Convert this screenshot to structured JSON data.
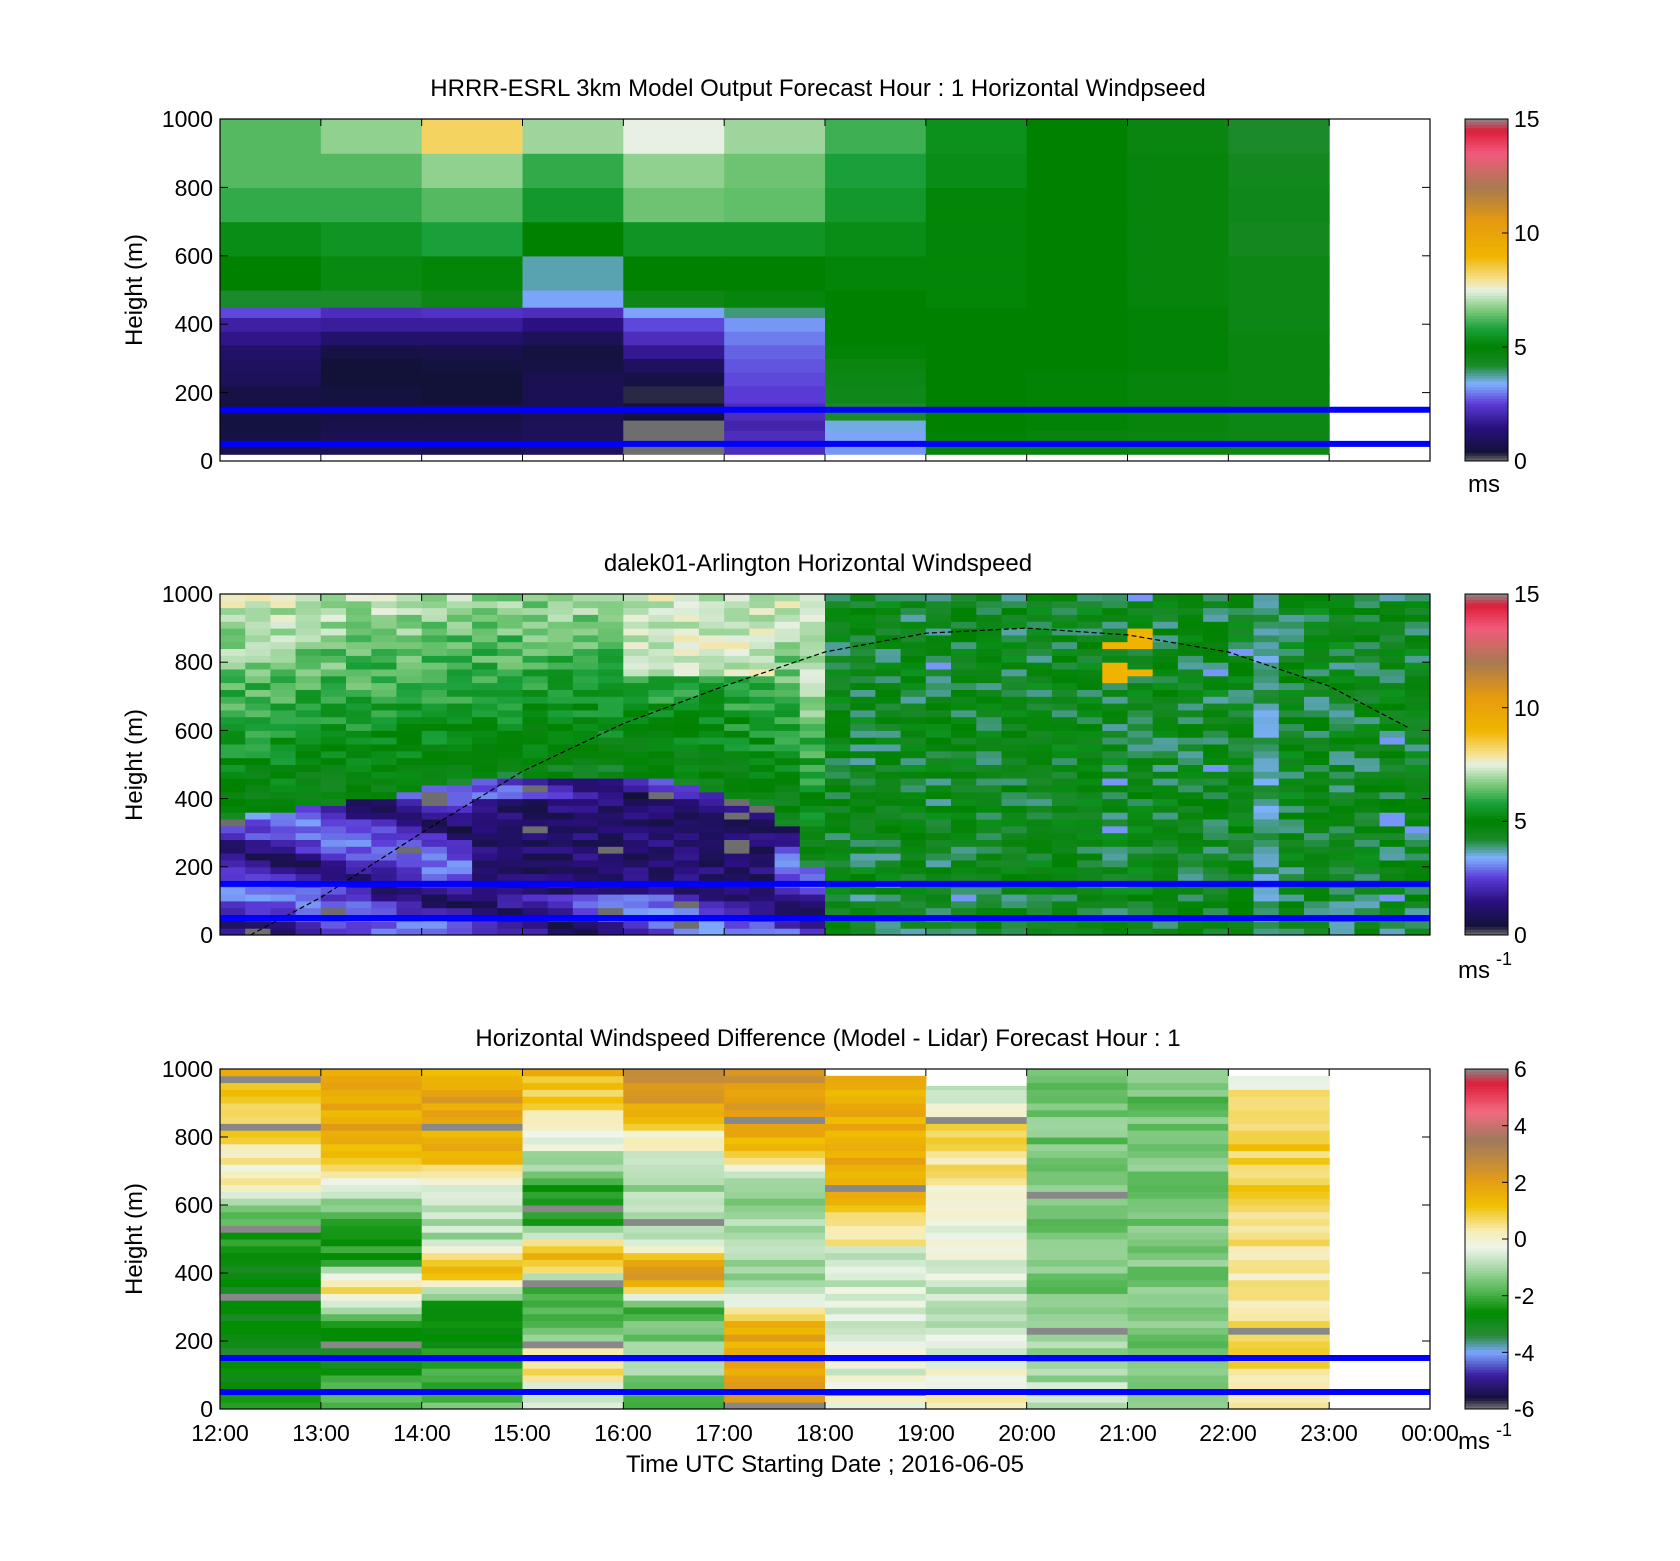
{
  "chart_data": [
    {
      "type": "heatmap",
      "title": "HRRR-ESRL 3km Model Output   Forecast Hour : 1 Horizontal Windpseed",
      "ylabel": "Height (m)",
      "xlabel": "",
      "ylim": [
        0,
        1000
      ],
      "yticks": [
        "0",
        "200",
        "400",
        "600",
        "800",
        "1000"
      ],
      "xlim_hours": [
        12,
        24
      ],
      "xticks": [],
      "colorbar": {
        "ticks": [
          "0",
          "5",
          "10",
          "15"
        ],
        "range": [
          0,
          15
        ],
        "unit": "ms",
        "unit_sup": "",
        "palette": "windspeed"
      },
      "reference_lines_m": [
        150,
        50
      ],
      "reference_line_color": "#0000ff",
      "grid": false,
      "cells": {
        "x_start": [
          12,
          13,
          14,
          15,
          16,
          17,
          18,
          19,
          20,
          21,
          22
        ],
        "x_width": 1,
        "y_edges": [
          20,
          60,
          90,
          120,
          170,
          220,
          260,
          300,
          340,
          380,
          420,
          450,
          500,
          600,
          700,
          800,
          900,
          1000
        ],
        "values": [
          [
            0.8,
            0.6,
            0.5,
            0.5,
            0.6,
            0.9,
            1.0,
            1.1,
            1.6,
            1.9,
            2.6,
            4.2,
            5.0,
            5.3,
            6.0,
            6.3,
            6.3
          ],
          [
            0.9,
            0.8,
            0.7,
            0.6,
            0.5,
            0.4,
            0.4,
            0.6,
            1.2,
            1.8,
            2.2,
            4.2,
            5.2,
            5.5,
            6.0,
            6.3,
            6.8
          ],
          [
            0.8,
            0.8,
            0.7,
            0.6,
            0.4,
            0.4,
            0.5,
            0.7,
            1.2,
            1.8,
            2.3,
            4.6,
            5.1,
            5.8,
            6.3,
            6.8,
            8.3
          ],
          [
            1.0,
            0.9,
            0.9,
            0.8,
            0.8,
            0.8,
            0.6,
            0.5,
            0.9,
            1.5,
            2.2,
            3.3,
            3.7,
            5.0,
            5.6,
            6.0,
            6.9
          ],
          [
            0.0,
            0.0,
            0.0,
            0.5,
            0.3,
            0.6,
            1.0,
            1.7,
            2.2,
            2.6,
            3.3,
            4.6,
            5.0,
            5.5,
            6.5,
            6.8,
            7.5
          ],
          [
            2.2,
            2.2,
            2.0,
            2.2,
            2.5,
            2.6,
            2.7,
            2.8,
            3.0,
            3.2,
            3.9,
            4.8,
            5.0,
            5.5,
            6.4,
            6.5,
            6.9
          ],
          [
            3.2,
            3.3,
            3.5,
            4.2,
            4.5,
            4.6,
            4.7,
            4.9,
            5.0,
            5.0,
            5.0,
            5.0,
            5.1,
            5.3,
            5.6,
            5.8,
            6.1
          ],
          [
            4.8,
            4.9,
            5.0,
            5.0,
            5.0,
            5.0,
            5.0,
            5.0,
            5.0,
            5.0,
            5.0,
            5.1,
            5.1,
            5.1,
            5.1,
            5.3,
            5.4
          ],
          [
            4.8,
            4.8,
            4.9,
            4.9,
            4.9,
            4.9,
            5.0,
            5.0,
            5.0,
            5.0,
            5.0,
            5.0,
            5.0,
            5.0,
            5.0,
            5.0,
            5.0
          ],
          [
            4.7,
            4.7,
            4.8,
            4.8,
            4.8,
            4.8,
            4.9,
            4.9,
            4.9,
            4.9,
            4.9,
            4.8,
            4.8,
            4.8,
            4.8,
            4.8,
            4.7
          ],
          [
            4.6,
            4.6,
            4.6,
            4.6,
            4.7,
            4.7,
            4.7,
            4.7,
            4.7,
            4.6,
            4.6,
            4.6,
            4.6,
            4.4,
            4.5,
            4.4,
            4.2
          ]
        ]
      }
    },
    {
      "type": "heatmap",
      "title": "dalek01-Arlington  Horizontal Windspeed",
      "ylabel": "Height (m)",
      "xlabel": "",
      "ylim": [
        0,
        1000
      ],
      "yticks": [
        "0",
        "200",
        "400",
        "600",
        "800",
        "1000"
      ],
      "xlim_hours": [
        12,
        24
      ],
      "xticks": [],
      "colorbar": {
        "ticks": [
          "0",
          "5",
          "10",
          "15"
        ],
        "range": [
          0,
          15
        ],
        "unit": "ms",
        "unit_sup": "-1",
        "palette": "windspeed"
      },
      "reference_lines_m": [
        150,
        50
      ],
      "reference_line_color": "#0000ff",
      "grid": false,
      "boundary_layer_top": {
        "hours": [
          12.3,
          13,
          14,
          15,
          16,
          17,
          18,
          19,
          20,
          21,
          22,
          23,
          23.9
        ],
        "height": [
          0,
          110,
          300,
          480,
          620,
          730,
          830,
          885,
          900,
          880,
          830,
          730,
          590
        ]
      },
      "lidar_field": {
        "x_start_hour": 12.0,
        "x_end_hour": 23.9,
        "column_width_hour": 0.25,
        "bin_m": 20,
        "max_height_m": 1000
      }
    },
    {
      "type": "heatmap",
      "title": "Horizontal Windspeed Difference (Model - Lidar) Forecast Hour : 1",
      "ylabel": "Height (m)",
      "xlabel": "Time UTC  Starting Date ; 2016-06-05",
      "ylim": [
        0,
        1000
      ],
      "yticks": [
        "0",
        "200",
        "400",
        "600",
        "800",
        "1000"
      ],
      "xlim_hours": [
        12,
        24
      ],
      "xticks": [
        "12:00",
        "13:00",
        "14:00",
        "15:00",
        "16:00",
        "17:00",
        "18:00",
        "19:00",
        "20:00",
        "21:00",
        "22:00",
        "23:00",
        "00:00"
      ],
      "colorbar": {
        "ticks": [
          "-6",
          "-4",
          "-2",
          "0",
          "2",
          "4",
          "6"
        ],
        "range": [
          -6,
          6
        ],
        "unit": "ms",
        "unit_sup": "-1",
        "palette": "difference"
      },
      "reference_lines_m": [
        150,
        50
      ],
      "reference_line_color": "#0000ff",
      "grid": false,
      "columns": [
        {
          "hour": 12,
          "profile_h": [
            0,
            150,
            250,
            400,
            550,
            650,
            750,
            900,
            1000
          ],
          "profile_v": [
            -2.5,
            -3.0,
            -2.8,
            -3.0,
            -2.0,
            0.0,
            0.4,
            1.2,
            1.4
          ]
        },
        {
          "hour": 13,
          "profile_h": [
            0,
            150,
            250,
            350,
            450,
            550,
            650,
            800,
            1000
          ],
          "profile_v": [
            -1.5,
            -3.0,
            -2.5,
            0.5,
            -2.5,
            -2.0,
            -0.5,
            1.8,
            1.5
          ]
        },
        {
          "hour": 14,
          "profile_h": [
            0,
            150,
            300,
            400,
            500,
            650,
            750,
            900,
            1000
          ],
          "profile_v": [
            -1.5,
            -2.5,
            -3.0,
            1.8,
            -1.0,
            -0.5,
            1.5,
            2.0,
            1.5
          ]
        },
        {
          "hour": 15,
          "profile_h": [
            0,
            150,
            250,
            350,
            450,
            550,
            650,
            800,
            1000
          ],
          "profile_v": [
            -1.0,
            1.0,
            -2.0,
            -2.0,
            1.8,
            -2.0,
            -2.2,
            0.0,
            1.6
          ]
        },
        {
          "hour": 16,
          "profile_h": [
            0,
            150,
            300,
            400,
            500,
            650,
            800,
            900,
            1000
          ],
          "profile_v": [
            -2.0,
            -1.0,
            -2.0,
            2.6,
            -0.5,
            -1.0,
            0.0,
            2.0,
            2.8
          ]
        },
        {
          "hour": 17,
          "profile_h": [
            0,
            80,
            150,
            250,
            350,
            500,
            650,
            800,
            1000
          ],
          "profile_v": [
            2.6,
            2.0,
            1.8,
            1.6,
            -1.0,
            -1.0,
            -1.2,
            1.8,
            2.4
          ]
        },
        {
          "hour": 18,
          "profile_h": [
            0,
            150,
            300,
            450,
            500,
            650,
            800,
            980
          ],
          "profile_v": [
            0.0,
            -0.5,
            -0.5,
            -0.8,
            0.5,
            1.6,
            1.6,
            1.6
          ]
        },
        {
          "hour": 19,
          "profile_h": [
            0,
            150,
            300,
            500,
            700,
            800,
            950
          ],
          "profile_v": [
            0.4,
            -0.5,
            -0.8,
            -0.3,
            0.4,
            0.8,
            -0.6
          ]
        },
        {
          "hour": 20,
          "profile_h": [
            0,
            100,
            300,
            500,
            700,
            900,
            1000
          ],
          "profile_v": [
            -0.5,
            -1.0,
            -1.4,
            -1.6,
            -1.5,
            -1.5,
            -1.6
          ]
        },
        {
          "hour": 21,
          "profile_h": [
            0,
            100,
            300,
            500,
            700,
            900,
            1000
          ],
          "profile_v": [
            -1.5,
            -1.6,
            -1.5,
            -1.4,
            -1.5,
            -1.6,
            -1.5
          ]
        },
        {
          "hour": 22,
          "profile_h": [
            0,
            150,
            300,
            500,
            700,
            900,
            980
          ],
          "profile_v": [
            0.4,
            0.8,
            0.3,
            0.6,
            0.9,
            1.0,
            -0.5
          ]
        }
      ]
    }
  ],
  "palettes": {
    "windspeed": [
      [
        0.0,
        "#6e6e6e"
      ],
      [
        0.4,
        "#121238"
      ],
      [
        1.5,
        "#2b1080"
      ],
      [
        2.5,
        "#5a3ad6"
      ],
      [
        3.4,
        "#7fb1ff"
      ],
      [
        4.2,
        "#1a8a2a"
      ],
      [
        5.0,
        "#008200"
      ],
      [
        5.8,
        "#1aa03a"
      ],
      [
        6.6,
        "#79c879"
      ],
      [
        7.5,
        "#e7f0e2"
      ],
      [
        8.0,
        "#f7e08a"
      ],
      [
        9.0,
        "#f0b400"
      ],
      [
        10.5,
        "#e69b0e"
      ],
      [
        12.0,
        "#a87a50"
      ],
      [
        13.5,
        "#f25a7c"
      ],
      [
        14.5,
        "#dc1e3a"
      ],
      [
        15.0,
        "#888888"
      ]
    ],
    "difference": [
      [
        -6.0,
        "#777777"
      ],
      [
        -5.6,
        "#140f3c"
      ],
      [
        -4.8,
        "#3c1ea0"
      ],
      [
        -4.0,
        "#7ba6ff"
      ],
      [
        -3.4,
        "#2a8a3a"
      ],
      [
        -2.6,
        "#008c00"
      ],
      [
        -1.8,
        "#57b857"
      ],
      [
        -1.0,
        "#a9d9a9"
      ],
      [
        -0.3,
        "#eef5ea"
      ],
      [
        0.3,
        "#f7ecb4"
      ],
      [
        1.2,
        "#f0c000"
      ],
      [
        2.0,
        "#e69f10"
      ],
      [
        2.8,
        "#bf8a40"
      ],
      [
        3.5,
        "#9e7a5c"
      ],
      [
        4.5,
        "#f26a80"
      ],
      [
        5.5,
        "#dc1e3a"
      ],
      [
        6.0,
        "#888888"
      ]
    ]
  }
}
